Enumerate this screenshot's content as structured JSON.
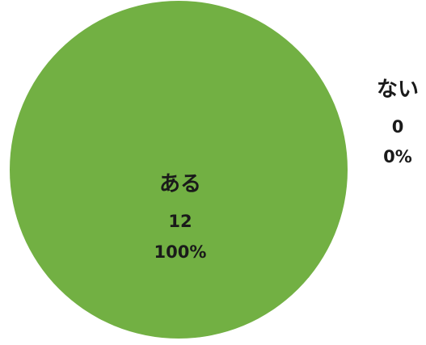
{
  "chart_data": {
    "type": "pie",
    "slices": [
      {
        "label": "ある",
        "value": 12,
        "percent": "100%",
        "color": "#72b043"
      },
      {
        "label": "ない",
        "value": 0,
        "percent": "0%",
        "color": "#5b9bd5"
      }
    ]
  }
}
